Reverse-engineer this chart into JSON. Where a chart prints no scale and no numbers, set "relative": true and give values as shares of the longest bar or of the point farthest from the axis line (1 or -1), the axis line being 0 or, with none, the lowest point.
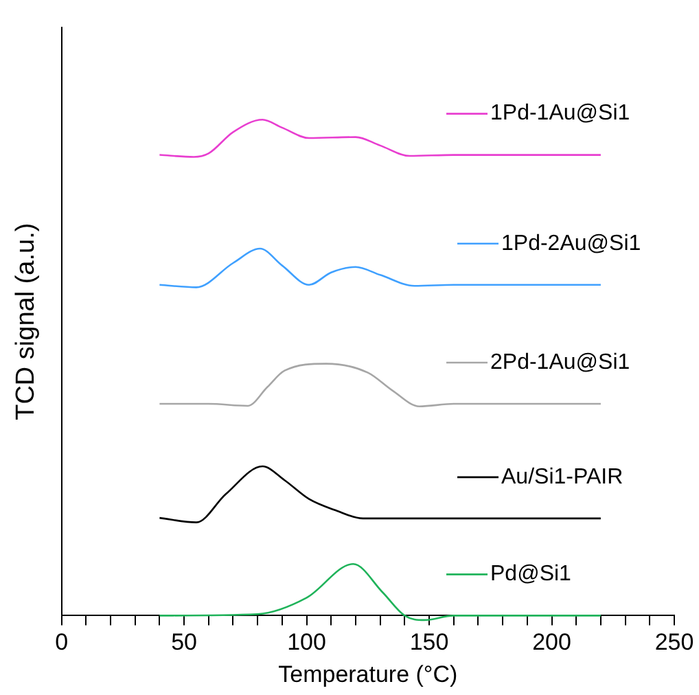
{
  "chart_data": {
    "type": "line",
    "xlabel": "Temperature (°C)",
    "ylabel": "TCD signal (a.u.)",
    "relative": true,
    "grid": false,
    "legend": "right",
    "marker": "none",
    "line_style": "solid",
    "xlim": [
      0,
      250
    ],
    "xticks": [
      0,
      {
        "value": 10,
        "label": null
      },
      {
        "value": 20,
        "label": null
      },
      {
        "value": 30,
        "label": null
      },
      {
        "value": 40,
        "label": null
      },
      50,
      {
        "value": 60,
        "label": null
      },
      {
        "value": 70,
        "label": null
      },
      {
        "value": 80,
        "label": null
      },
      {
        "value": 90,
        "label": null
      },
      100,
      {
        "value": 110,
        "label": null
      },
      {
        "value": 120,
        "label": null
      },
      {
        "value": 130,
        "label": null
      },
      {
        "value": 140,
        "label": null
      },
      150,
      {
        "value": 160,
        "label": null
      },
      {
        "value": 170,
        "label": null
      },
      {
        "value": 180,
        "label": null
      },
      {
        "value": 190,
        "label": null
      },
      200,
      {
        "value": 210,
        "label": null
      },
      {
        "value": 220,
        "label": null
      },
      {
        "value": 230,
        "label": null
      },
      {
        "value": 240,
        "label": null
      },
      250
    ],
    "series": [
      {
        "name": "1Pd-1Au@Si1",
        "color": "#e83ed0",
        "x": [
          40,
          54,
          60,
          70,
          82,
          90,
          101,
          120,
          130,
          142,
          160,
          220
        ],
        "values": [
          0.929,
          0.925,
          0.932,
          0.975,
          1.0,
          0.984,
          0.963,
          0.965,
          0.948,
          0.927,
          0.929,
          0.929
        ]
      },
      {
        "name": "1Pd-2Au@Si1",
        "color": "#3fa0ff",
        "x": [
          40,
          55,
          70,
          81,
          90,
          101,
          110,
          120,
          130,
          144,
          160,
          220
        ],
        "values": [
          0.667,
          0.662,
          0.711,
          0.74,
          0.706,
          0.667,
          0.692,
          0.703,
          0.687,
          0.665,
          0.667,
          0.667
        ]
      },
      {
        "name": "2Pd-1Au@Si1",
        "color": "#a6a6a6",
        "x": [
          40,
          60,
          76,
          84,
          91,
          108,
          125,
          135,
          146,
          160,
          220
        ],
        "values": [
          0.427,
          0.427,
          0.423,
          0.461,
          0.494,
          0.508,
          0.49,
          0.454,
          0.422,
          0.427,
          0.427
        ]
      },
      {
        "name": "Au/Si1-PAIR",
        "color": "#000000",
        "x": [
          40,
          55,
          67,
          82,
          91,
          101,
          112,
          123,
          220
        ],
        "values": [
          0.197,
          0.188,
          0.245,
          0.301,
          0.273,
          0.235,
          0.212,
          0.196,
          0.196
        ]
      },
      {
        "name": "Pd@Si1",
        "color": "#1fb35a",
        "x": [
          40,
          80,
          100,
          119,
          131,
          140,
          148,
          160,
          220
        ],
        "values": [
          0,
          0.003,
          0.036,
          0.104,
          0.047,
          0,
          -0.009,
          0,
          0
        ]
      }
    ]
  }
}
